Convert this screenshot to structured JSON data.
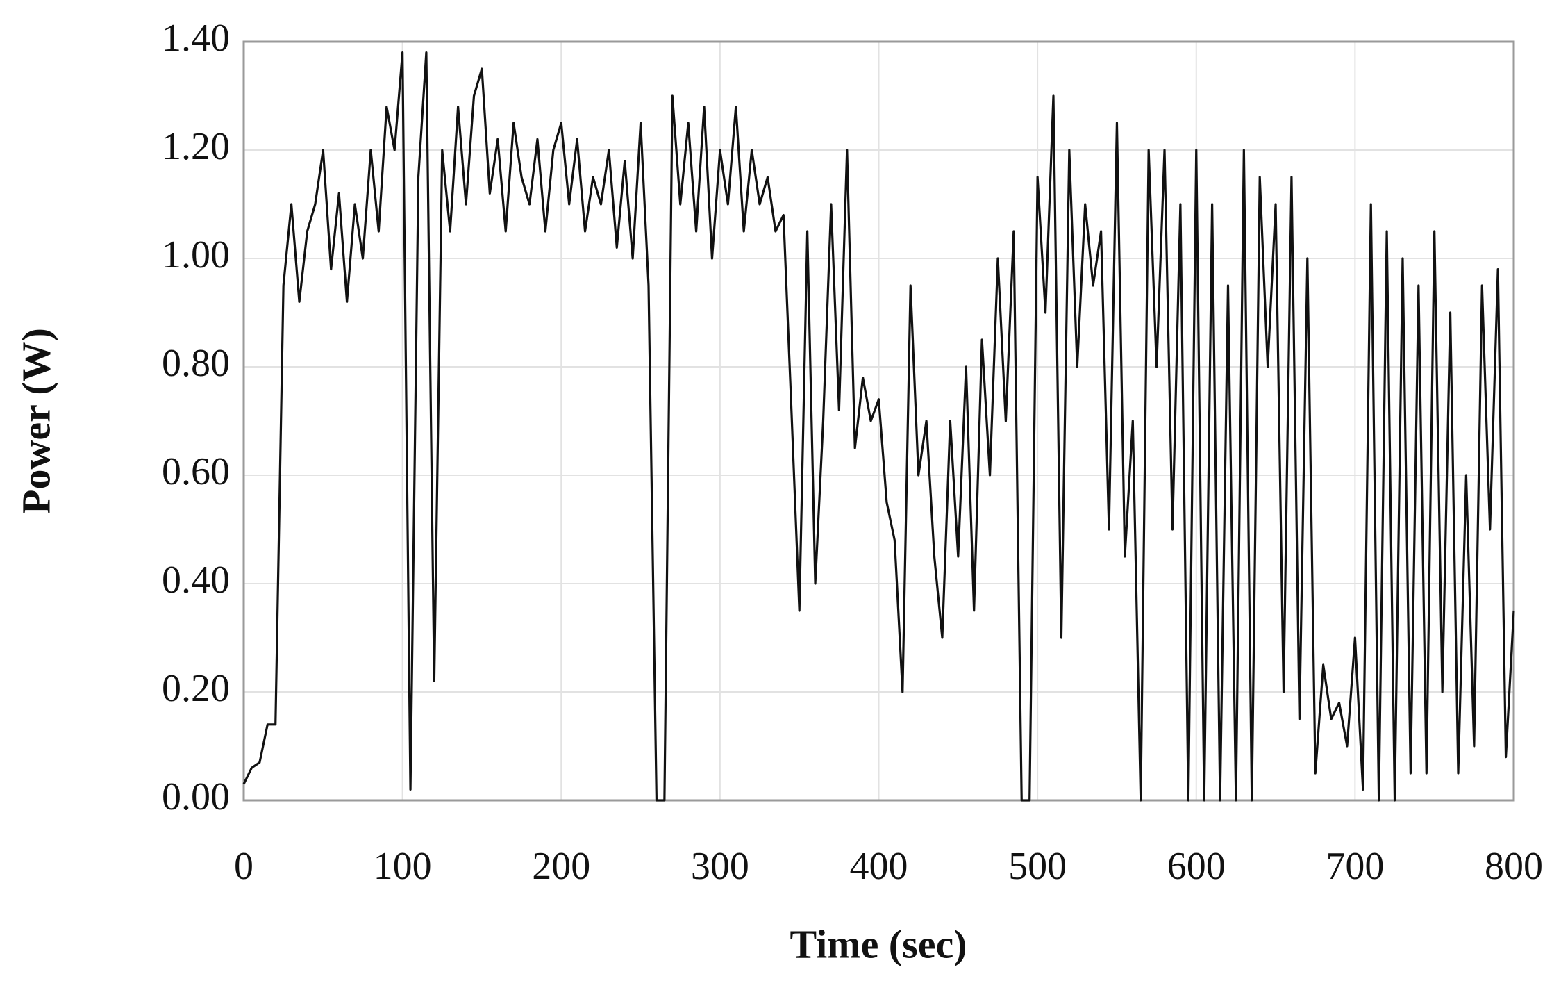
{
  "chart_data": {
    "type": "line",
    "x_label": "Time (sec)",
    "y_label": "Power (W)",
    "xlim": [
      0,
      800
    ],
    "ylim": [
      0,
      1.4
    ],
    "xticks": [
      0,
      100,
      200,
      300,
      400,
      500,
      600,
      700,
      800
    ],
    "yticks": [
      {
        "value": 0,
        "label": "0.00"
      },
      {
        "value": 0.2,
        "label": "0.20"
      },
      {
        "value": 0.4,
        "label": "0.40"
      },
      {
        "value": 0.6,
        "label": "0.60"
      },
      {
        "value": 0.8,
        "label": "0.80"
      },
      {
        "value": 1.0,
        "label": "1.00"
      },
      {
        "value": 1.2,
        "label": "1.20"
      },
      {
        "value": 1.4,
        "label": "1.40"
      }
    ],
    "grid": true,
    "x": [
      0,
      5,
      10,
      15,
      20,
      25,
      30,
      35,
      40,
      45,
      50,
      55,
      60,
      65,
      70,
      75,
      80,
      85,
      90,
      95,
      100,
      105,
      110,
      115,
      120,
      125,
      130,
      135,
      140,
      145,
      150,
      155,
      160,
      165,
      170,
      175,
      180,
      185,
      190,
      195,
      200,
      205,
      210,
      215,
      220,
      225,
      230,
      235,
      240,
      245,
      250,
      255,
      260,
      265,
      270,
      275,
      280,
      285,
      290,
      295,
      300,
      305,
      310,
      315,
      320,
      325,
      330,
      335,
      340,
      345,
      350,
      355,
      360,
      365,
      370,
      375,
      380,
      385,
      390,
      395,
      400,
      405,
      410,
      415,
      420,
      425,
      430,
      435,
      440,
      445,
      450,
      455,
      460,
      465,
      470,
      475,
      480,
      485,
      490,
      495,
      500,
      505,
      510,
      515,
      520,
      525,
      530,
      535,
      540,
      545,
      550,
      555,
      560,
      565,
      570,
      575,
      580,
      585,
      590,
      595,
      600,
      605,
      610,
      615,
      620,
      625,
      630,
      635,
      640,
      645,
      650,
      655,
      660,
      665,
      670,
      675,
      680,
      685,
      690,
      695,
      700,
      705,
      710,
      715,
      720,
      725,
      730,
      735,
      740,
      745,
      750,
      755,
      760,
      765,
      770,
      775,
      780,
      785,
      790,
      795,
      800
    ],
    "series": [
      {
        "color": "#111111",
        "values": [
          0.03,
          0.06,
          0.07,
          0.14,
          0.14,
          0.95,
          1.1,
          0.92,
          1.05,
          1.1,
          1.2,
          0.98,
          1.12,
          0.92,
          1.1,
          1.0,
          1.2,
          1.05,
          1.28,
          1.2,
          1.38,
          0.02,
          1.15,
          1.38,
          0.22,
          1.2,
          1.05,
          1.28,
          1.1,
          1.3,
          1.35,
          1.12,
          1.22,
          1.05,
          1.25,
          1.15,
          1.1,
          1.22,
          1.05,
          1.2,
          1.25,
          1.1,
          1.22,
          1.05,
          1.15,
          1.1,
          1.2,
          1.02,
          1.18,
          1.0,
          1.25,
          0.95,
          0.0,
          0.0,
          1.3,
          1.1,
          1.25,
          1.05,
          1.28,
          1.0,
          1.2,
          1.1,
          1.28,
          1.05,
          1.2,
          1.1,
          1.15,
          1.05,
          1.08,
          0.72,
          0.35,
          1.05,
          0.4,
          0.7,
          1.1,
          0.72,
          1.2,
          0.65,
          0.78,
          0.7,
          0.74,
          0.55,
          0.48,
          0.2,
          0.95,
          0.6,
          0.7,
          0.45,
          0.3,
          0.7,
          0.45,
          0.8,
          0.35,
          0.85,
          0.6,
          1.0,
          0.7,
          1.05,
          0.0,
          0.0,
          1.15,
          0.9,
          1.3,
          0.3,
          1.2,
          0.8,
          1.1,
          0.95,
          1.05,
          0.5,
          1.25,
          0.45,
          0.7,
          0.0,
          1.2,
          0.8,
          1.2,
          0.5,
          1.1,
          0.0,
          1.2,
          0.0,
          1.1,
          0.0,
          0.95,
          0.0,
          1.2,
          0.0,
          1.15,
          0.8,
          1.1,
          0.2,
          1.15,
          0.15,
          1.0,
          0.05,
          0.25,
          0.15,
          0.18,
          0.1,
          0.3,
          0.02,
          1.1,
          0.0,
          1.05,
          0.0,
          1.0,
          0.05,
          0.95,
          0.05,
          1.05,
          0.2,
          0.9,
          0.05,
          0.6,
          0.1,
          0.95,
          0.5,
          0.98,
          0.08,
          0.35
        ]
      }
    ]
  }
}
